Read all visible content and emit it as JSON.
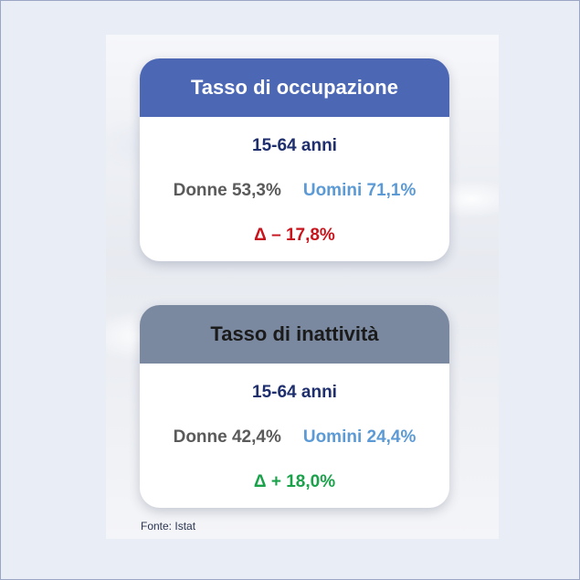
{
  "cards": [
    {
      "title": "Tasso di occupazione",
      "age_group": "15-64 anni",
      "women": "Donne 53,3%",
      "men": "Uomini 71,1%",
      "delta": "Δ – 17,8%"
    },
    {
      "title": "Tasso di inattività",
      "age_group": "15-64 anni",
      "women": "Donne 42,4%",
      "men": "Uomini 24,4%",
      "delta": "Δ + 18,0%"
    }
  ],
  "source": "Fonte: Istat",
  "colors": {
    "header_occupazione": "#4c67b4",
    "header_inattivita": "#7a899f",
    "age_text": "#1f2f6e",
    "women_text": "#5a5a5a",
    "men_text": "#5b9ad5",
    "delta_negative": "#c8141c",
    "delta_positive": "#1aa24a"
  }
}
